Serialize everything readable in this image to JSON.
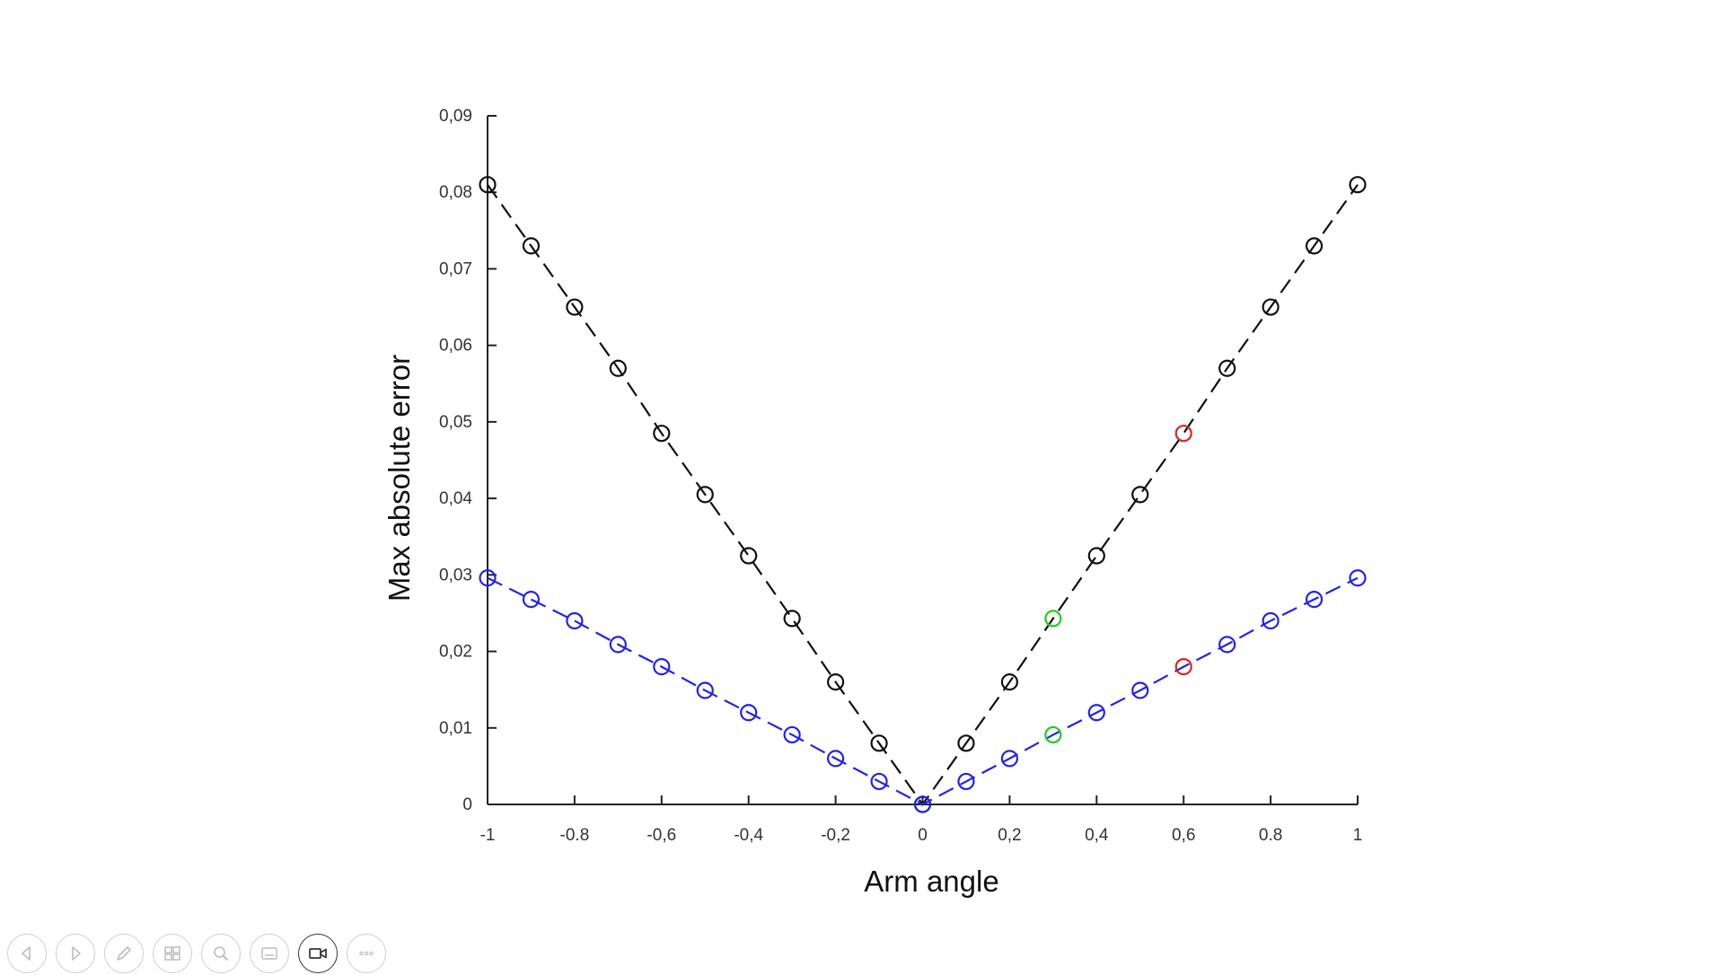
{
  "chart_data": {
    "type": "scatter",
    "xlabel": "Arm angle",
    "ylabel": "Max absolute error",
    "xlim": [
      -1,
      1
    ],
    "ylim": [
      0,
      0.09
    ],
    "x_ticks": [
      -1,
      -0.8,
      -0.6,
      -0.4,
      -0.2,
      0,
      0.2,
      0.4,
      0.6,
      0.8,
      1
    ],
    "x_tick_labels": [
      "-1",
      "-0.8",
      "-0,6",
      "-0,4",
      "-0,2",
      "0",
      "0,2",
      "0,4",
      "0,6",
      "0.8",
      "1"
    ],
    "y_ticks": [
      0,
      0.01,
      0.02,
      0.03,
      0.04,
      0.05,
      0.06,
      0.07,
      0.08,
      0.09
    ],
    "y_tick_labels": [
      "0",
      "0,01",
      "0,02",
      "0,03",
      "0,04",
      "0,05",
      "0,06",
      "0,07",
      "0,08",
      "0,09"
    ],
    "grid": false,
    "line_style": "dashed",
    "marker": "open-circle",
    "series": [
      {
        "color": "#111111",
        "x": [
          -1,
          -0.9,
          -0.8,
          -0.7,
          -0.6,
          -0.5,
          -0.4,
          -0.3,
          -0.2,
          -0.1,
          0,
          0.1,
          0.2,
          0.3,
          0.4,
          0.5,
          0.6,
          0.7,
          0.8,
          0.9,
          1
        ],
        "y": [
          0.081,
          0.073,
          0.065,
          0.057,
          0.0485,
          0.0405,
          0.0325,
          0.0243,
          0.016,
          0.008,
          0,
          0.008,
          0.016,
          0.0243,
          0.0325,
          0.0405,
          0.0485,
          0.057,
          0.065,
          0.073,
          0.081
        ],
        "marker_colors": {
          "0.3": "#22cc22",
          "0.6": "#dd2222"
        }
      },
      {
        "color": "#2222ee",
        "x": [
          -1,
          -0.9,
          -0.8,
          -0.7,
          -0.6,
          -0.5,
          -0.4,
          -0.3,
          -0.2,
          -0.1,
          0,
          0.1,
          0.2,
          0.3,
          0.4,
          0.5,
          0.6,
          0.7,
          0.8,
          0.9,
          1
        ],
        "y": [
          0.0296,
          0.0268,
          0.024,
          0.0209,
          0.018,
          0.0149,
          0.012,
          0.0091,
          0.006,
          0.003,
          0,
          0.003,
          0.006,
          0.0091,
          0.012,
          0.0149,
          0.018,
          0.0209,
          0.024,
          0.0268,
          0.0296
        ],
        "marker_colors": {
          "0.3": "#22cc22",
          "0.6": "#dd2222"
        }
      }
    ]
  },
  "toolbar": {
    "buttons": [
      {
        "icon": "previous-icon"
      },
      {
        "icon": "next-icon"
      },
      {
        "icon": "pen-icon"
      },
      {
        "icon": "slides-grid-icon"
      },
      {
        "icon": "zoom-icon"
      },
      {
        "icon": "subtitles-icon"
      },
      {
        "icon": "camera-icon",
        "active": true
      },
      {
        "icon": "more-options-icon"
      }
    ]
  }
}
